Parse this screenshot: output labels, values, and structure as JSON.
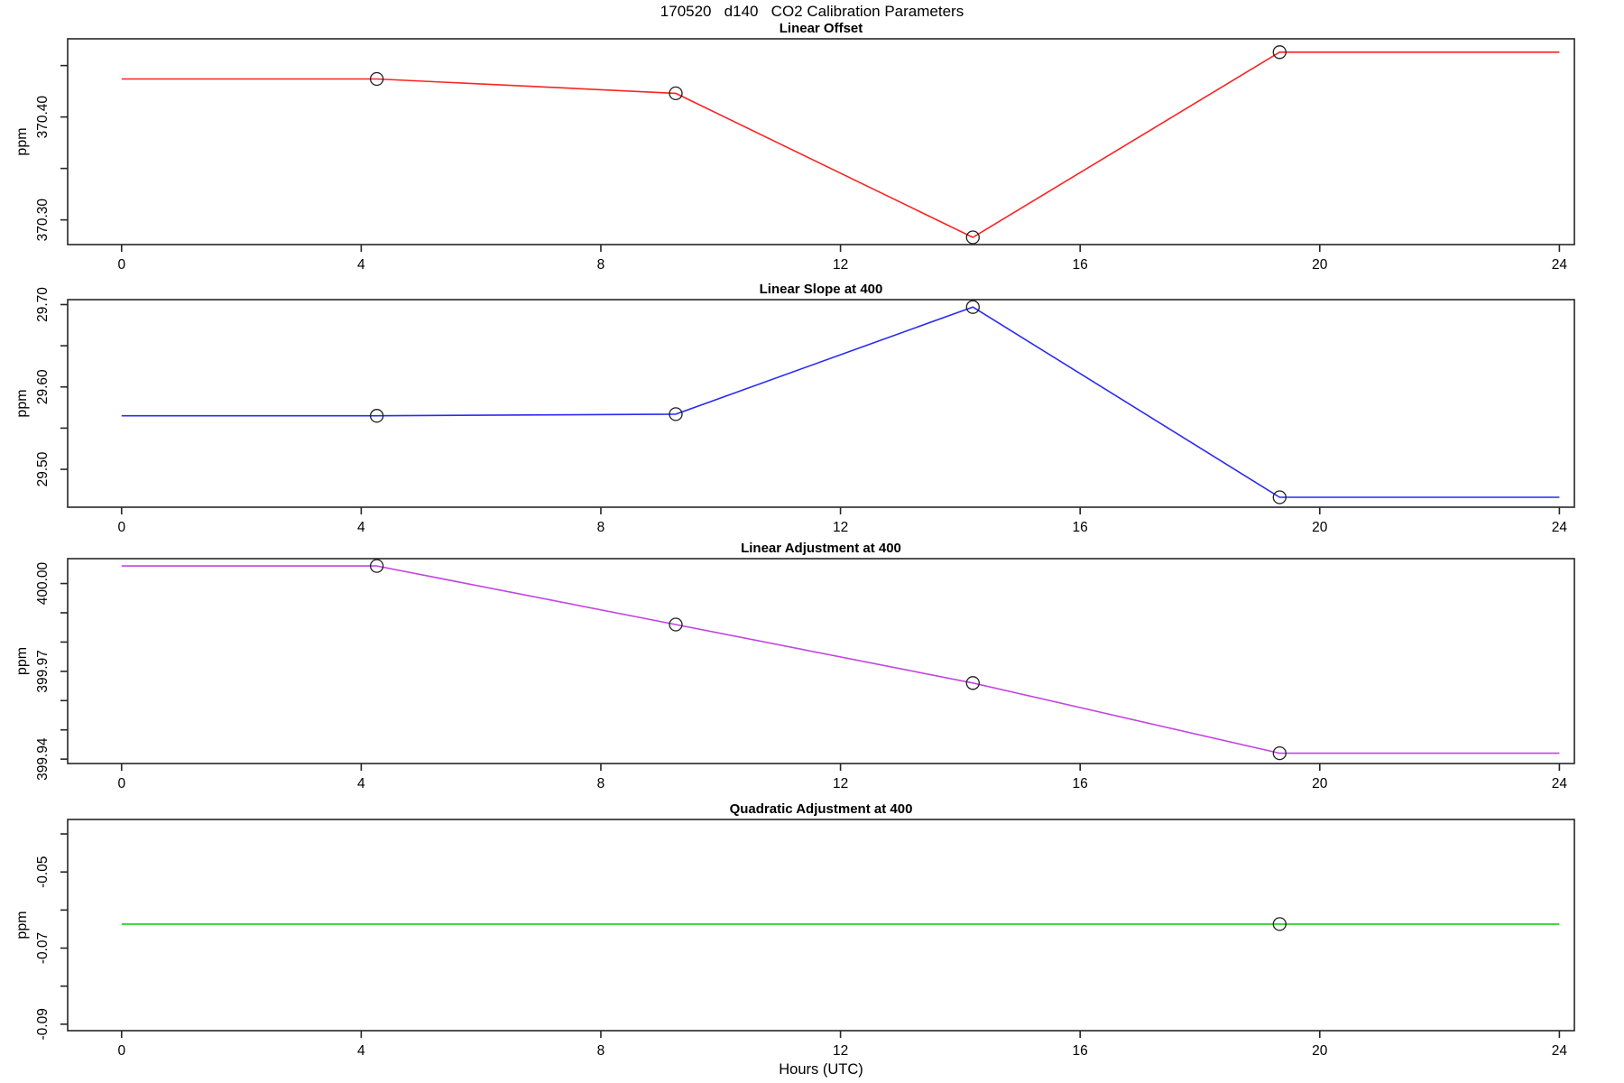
{
  "chart_data": {
    "type": "line",
    "title": "170520   d140   CO2 Calibration Parameters",
    "xlabel": "Hours (UTC)",
    "x_ticks": [
      0,
      4,
      8,
      12,
      16,
      20,
      24
    ],
    "xlim": [
      -0.9,
      24.25
    ],
    "grid": false,
    "legend": "none",
    "marker_style": "open-circle",
    "axis_color": "#262626",
    "panels": [
      {
        "title": "Linear Offset",
        "ylabel": "ppm",
        "color": "#fb2222",
        "ylim": [
          370.276,
          370.476
        ],
        "yticks": [
          {
            "v": 370.3,
            "label": "370.30"
          },
          {
            "v": 370.35,
            "label": ""
          },
          {
            "v": 370.4,
            "label": "370.40"
          },
          {
            "v": 370.45,
            "label": ""
          }
        ],
        "x": [
          0,
          4.26,
          9.25,
          14.21,
          19.33,
          24
        ],
        "y": [
          370.437,
          370.437,
          370.423,
          370.283,
          370.463,
          370.463
        ],
        "marker_idx": [
          1,
          2,
          3,
          4
        ]
      },
      {
        "title": "Linear Slope at 400",
        "ylabel": "ppm",
        "color": "#2a2af0",
        "ylim": [
          29.454,
          29.706
        ],
        "yticks": [
          {
            "v": 29.5,
            "label": "29.50"
          },
          {
            "v": 29.55,
            "label": ""
          },
          {
            "v": 29.6,
            "label": "29.60"
          },
          {
            "v": 29.65,
            "label": ""
          },
          {
            "v": 29.7,
            "label": "29.70"
          }
        ],
        "x": [
          0,
          4.26,
          9.25,
          14.21,
          19.33,
          24
        ],
        "y": [
          29.565,
          29.565,
          29.567,
          29.697,
          29.466,
          29.466
        ],
        "marker_idx": [
          1,
          2,
          3,
          4
        ]
      },
      {
        "title": "Linear Adjustment at 400",
        "ylabel": "ppm",
        "color": "#c243e2",
        "ylim": [
          399.9385,
          400.0085
        ],
        "yticks": [
          {
            "v": 399.94,
            "label": "399.94"
          },
          {
            "v": 399.95,
            "label": ""
          },
          {
            "v": 399.96,
            "label": ""
          },
          {
            "v": 399.97,
            "label": "399.97"
          },
          {
            "v": 399.98,
            "label": ""
          },
          {
            "v": 399.99,
            "label": ""
          },
          {
            "v": 400.0,
            "label": "400.00"
          }
        ],
        "x": [
          0,
          4.26,
          9.25,
          14.21,
          19.33,
          24
        ],
        "y": [
          400.006,
          400.006,
          399.986,
          399.966,
          399.942,
          399.942
        ],
        "marker_idx": [
          1,
          2,
          3,
          4
        ]
      },
      {
        "title": "Quadratic Adjustment at 400",
        "ylabel": "ppm",
        "color": "#0bd40b",
        "ylim": [
          -0.0917,
          -0.0362
        ],
        "yticks": [
          {
            "v": -0.09,
            "label": "-0.09"
          },
          {
            "v": -0.08,
            "label": ""
          },
          {
            "v": -0.07,
            "label": "-0.07"
          },
          {
            "v": -0.06,
            "label": ""
          },
          {
            "v": -0.05,
            "label": "-0.05"
          },
          {
            "v": -0.04,
            "label": ""
          }
        ],
        "x": [
          0,
          4.26,
          9.25,
          14.21,
          19.33,
          24
        ],
        "y": [
          -0.0637,
          -0.0637,
          -0.0637,
          -0.0637,
          -0.0637,
          -0.0637
        ],
        "marker_idx": [
          4
        ]
      }
    ]
  }
}
